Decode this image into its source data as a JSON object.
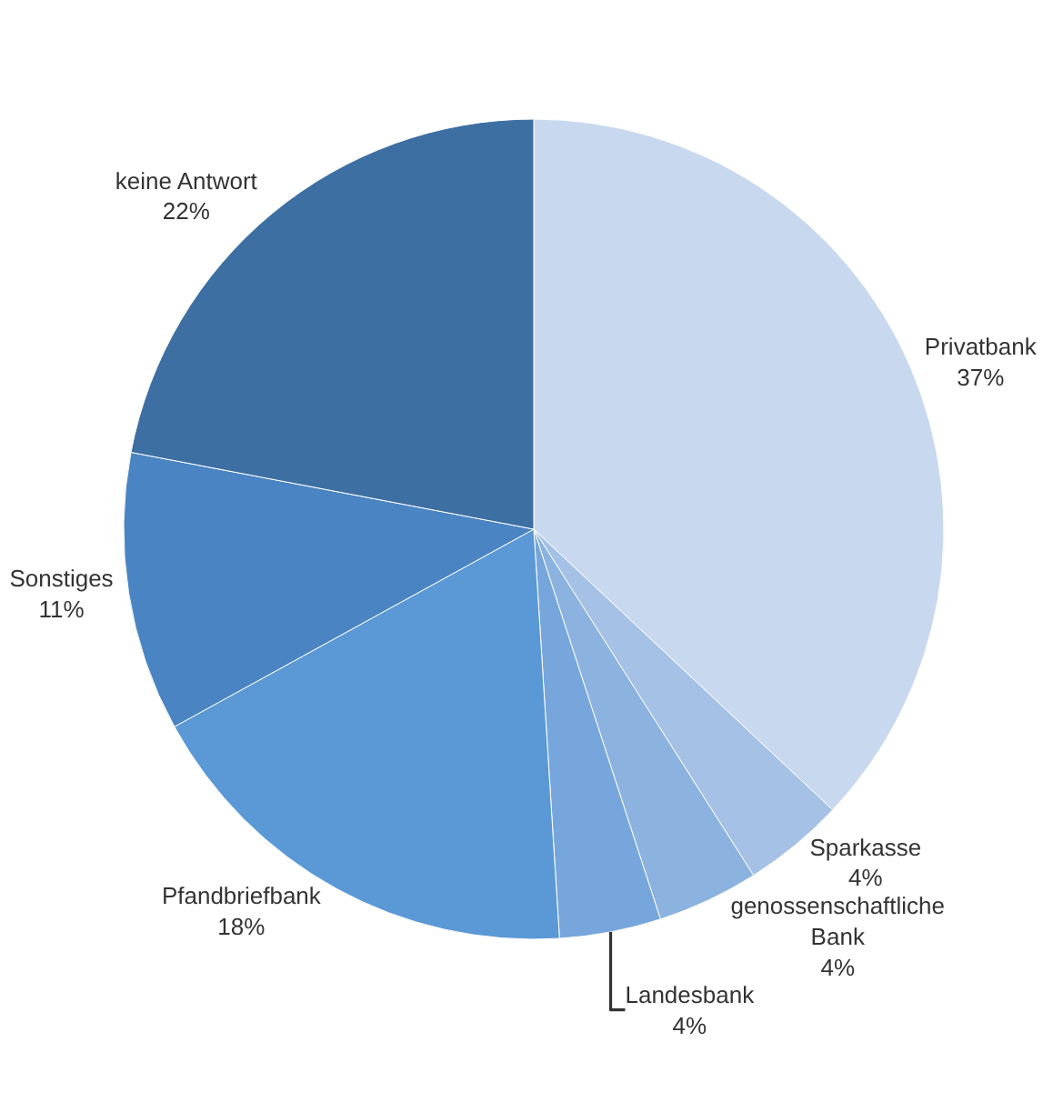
{
  "chart_data": {
    "type": "pie",
    "categories": [
      "Privatbank",
      "Sparkasse",
      "genossenschaftliche Bank",
      "Landesbank",
      "Pfandbriefbank",
      "Sonstiges",
      "keine Antwort"
    ],
    "values": [
      37,
      4,
      4,
      4,
      18,
      11,
      22
    ],
    "value_labels": [
      "37%",
      "4%",
      "4%",
      "4%",
      "18%",
      "11%",
      "22%"
    ],
    "colors": [
      "#c8d8ee",
      "#a6c1e6",
      "#8cb2e0",
      "#77a6dc",
      "#5a98d6",
      "#4a84c2",
      "#3d6fa3"
    ],
    "legend": false
  }
}
